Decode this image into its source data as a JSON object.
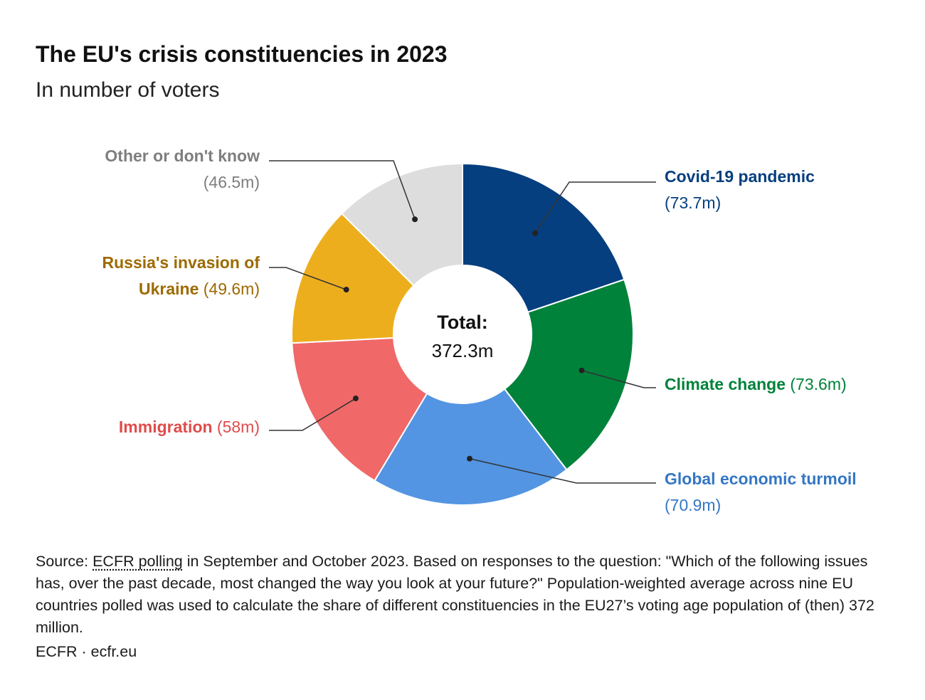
{
  "header": {
    "title": "The EU's crisis constituencies in 2023",
    "subtitle": "In number of voters"
  },
  "center": {
    "label": "Total:",
    "value": "372.3m"
  },
  "chart_data": {
    "type": "pie",
    "donut": true,
    "title": "The EU's crisis constituencies in 2023",
    "subtitle": "In number of voters",
    "unit": "million voters",
    "total": 372.3,
    "slices": [
      {
        "name": "Covid-19 pandemic",
        "value": 73.7,
        "label_value": "(73.7m)",
        "color": "#063f7f"
      },
      {
        "name": "Climate change",
        "value": 73.6,
        "label_value": "(73.6m)",
        "color": "#00823b"
      },
      {
        "name": "Global economic turmoil",
        "value": 70.9,
        "label_value": "(70.9m)",
        "color": "#5395e2"
      },
      {
        "name": "Immigration",
        "value": 58,
        "label_value": "(58m)",
        "color": "#f06868"
      },
      {
        "name": "Russia's invasion of Ukraine",
        "value": 49.6,
        "label_value": "(49.6m)",
        "color": "#edae1e"
      },
      {
        "name": "Other or don't know",
        "value": 46.5,
        "label_value": "(46.5m)",
        "color": "#dddddd"
      }
    ],
    "label_colors": [
      "#063f7f",
      "#00823b",
      "#3577c4",
      "#df4c4c",
      "#9d6a00",
      "#7e7e7e"
    ]
  },
  "footer": {
    "source_prefix": "Source: ",
    "source_link": "ECFR polling",
    "source_rest": " in September and October 2023. Based on responses to the question: \"Which of the following issues has, over the past decade, most changed the way you look at your future?\" Population-weighted average across nine EU countries polled was used to calculate the share of different constituencies in the EU27’s voting age population of (then) 372 million.",
    "credit": "ECFR · ecfr.eu"
  }
}
